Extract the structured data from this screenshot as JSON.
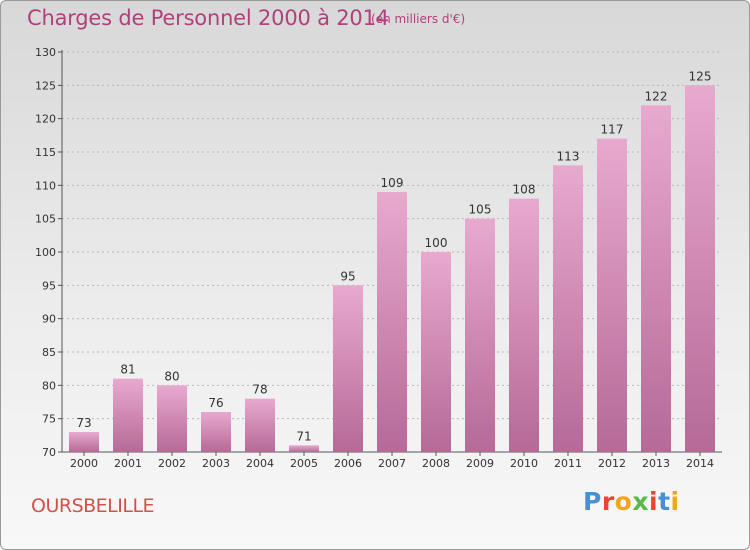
{
  "header": {
    "title": "Charges de Personnel 2000 à 2014",
    "subtitle": "(en milliers d'€)"
  },
  "footer": {
    "commune": "OURSBELILLE",
    "brand": "Proxiti",
    "brand_colors": [
      "#4a8fd6",
      "#e8442f",
      "#f2a51c",
      "#5ab847",
      "#e8442f",
      "#4a8fd6",
      "#f2a51c"
    ]
  },
  "colors": {
    "bar_light": "#e8a9cf",
    "bar_dark": "#b56a97",
    "title": "#b0417c",
    "commune": "#d4504a",
    "axis": "#555555",
    "grid": "#b8b8b8"
  },
  "chart_data": {
    "type": "bar",
    "title": "Charges de Personnel 2000 à 2014",
    "subtitle": "(en milliers d'€)",
    "categories": [
      "2000",
      "2001",
      "2002",
      "2003",
      "2004",
      "2005",
      "2006",
      "2007",
      "2008",
      "2009",
      "2010",
      "2011",
      "2012",
      "2013",
      "2014"
    ],
    "values": [
      73,
      81,
      80,
      76,
      78,
      71,
      95,
      109,
      100,
      105,
      108,
      113,
      117,
      122,
      125
    ],
    "ylim": [
      70,
      130
    ],
    "yticks": [
      70,
      75,
      80,
      85,
      90,
      95,
      100,
      105,
      110,
      115,
      120,
      125,
      130
    ],
    "grid": "horizontal dashed",
    "data_labels": true
  }
}
